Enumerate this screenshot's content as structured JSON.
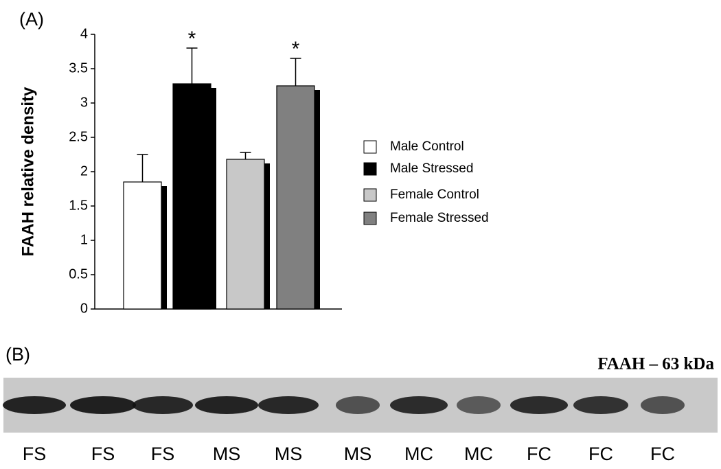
{
  "chart_data": {
    "type": "bar",
    "panel_label": "(A)",
    "ylabel": "FAAH relative density",
    "categories": [
      null
    ],
    "series": [
      {
        "name": "Male Control",
        "color": "#ffffff",
        "values": [
          1.85
        ],
        "errors": [
          0.4
        ]
      },
      {
        "name": "Male Stressed",
        "color": "#000000",
        "values": [
          3.28
        ],
        "errors": [
          0.52
        ]
      },
      {
        "name": "Female Control",
        "color": "#c8c8c8",
        "values": [
          2.18
        ],
        "errors": [
          0.1
        ]
      },
      {
        "name": "Female Stressed",
        "color": "#808080",
        "values": [
          3.25
        ],
        "errors": [
          0.4
        ]
      }
    ],
    "annotations": [
      "*",
      "*"
    ],
    "ylim": [
      0,
      4
    ],
    "yticks": [
      0,
      0.5,
      1,
      1.5,
      2,
      2.5,
      3,
      3.5,
      4
    ],
    "grid": false,
    "legend": "right"
  },
  "blot": {
    "panel_label": "(B)",
    "title": "FAAH – 63 kDa",
    "lanes": [
      "FS",
      "FS",
      "FS",
      "MS",
      "MS",
      "MS",
      "MC",
      "MC",
      "FC",
      "FC",
      "FC"
    ]
  }
}
